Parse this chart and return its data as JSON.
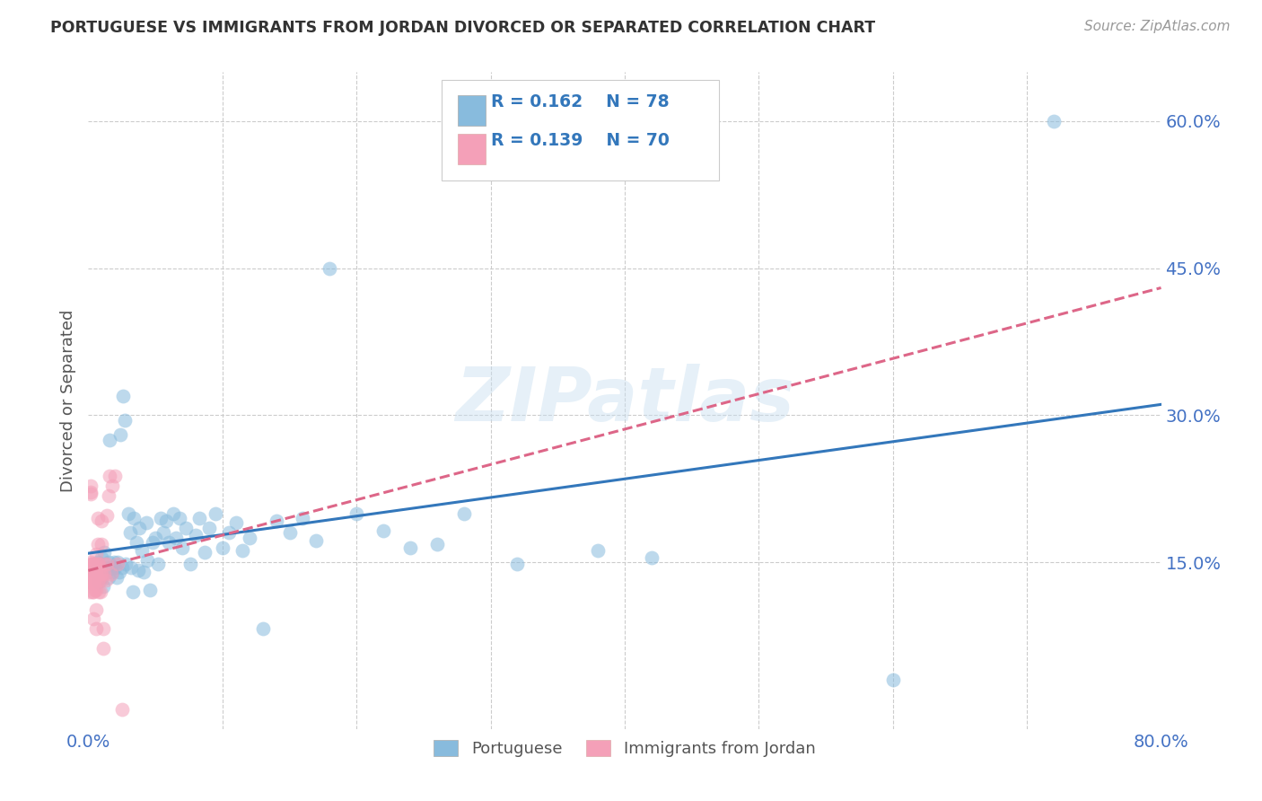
{
  "title": "PORTUGUESE VS IMMIGRANTS FROM JORDAN DIVORCED OR SEPARATED CORRELATION CHART",
  "source": "Source: ZipAtlas.com",
  "ylabel": "Divorced or Separated",
  "ytick_labels": [
    "15.0%",
    "30.0%",
    "45.0%",
    "60.0%"
  ],
  "ytick_values": [
    0.15,
    0.3,
    0.45,
    0.6
  ],
  "xlim": [
    0.0,
    0.8
  ],
  "ylim": [
    -0.02,
    0.65
  ],
  "watermark": "ZIPatlas",
  "blue_color": "#88bbdd",
  "pink_color": "#f4a0b8",
  "blue_line_color": "#3377bb",
  "pink_line_color": "#dd6688",
  "legend_label_blue": "Portuguese",
  "legend_label_pink": "Immigrants from Jordan",
  "blue_scatter_x": [
    0.005,
    0.007,
    0.008,
    0.009,
    0.01,
    0.01,
    0.01,
    0.011,
    0.012,
    0.013,
    0.014,
    0.015,
    0.015,
    0.016,
    0.017,
    0.018,
    0.019,
    0.02,
    0.021,
    0.022,
    0.023,
    0.024,
    0.025,
    0.026,
    0.027,
    0.028,
    0.03,
    0.031,
    0.032,
    0.033,
    0.034,
    0.036,
    0.037,
    0.038,
    0.04,
    0.041,
    0.043,
    0.044,
    0.046,
    0.048,
    0.05,
    0.052,
    0.054,
    0.056,
    0.058,
    0.06,
    0.063,
    0.065,
    0.068,
    0.07,
    0.073,
    0.076,
    0.08,
    0.083,
    0.087,
    0.09,
    0.095,
    0.1,
    0.105,
    0.11,
    0.115,
    0.12,
    0.13,
    0.14,
    0.15,
    0.16,
    0.17,
    0.18,
    0.2,
    0.22,
    0.24,
    0.26,
    0.28,
    0.32,
    0.38,
    0.42,
    0.6,
    0.72
  ],
  "blue_scatter_y": [
    0.14,
    0.15,
    0.13,
    0.145,
    0.135,
    0.155,
    0.14,
    0.125,
    0.16,
    0.14,
    0.145,
    0.135,
    0.15,
    0.275,
    0.145,
    0.14,
    0.15,
    0.145,
    0.135,
    0.15,
    0.14,
    0.28,
    0.145,
    0.32,
    0.295,
    0.148,
    0.2,
    0.18,
    0.145,
    0.12,
    0.195,
    0.17,
    0.142,
    0.185,
    0.162,
    0.14,
    0.19,
    0.152,
    0.122,
    0.17,
    0.175,
    0.148,
    0.195,
    0.18,
    0.192,
    0.17,
    0.2,
    0.175,
    0.195,
    0.165,
    0.185,
    0.148,
    0.178,
    0.195,
    0.16,
    0.185,
    0.2,
    0.165,
    0.18,
    0.19,
    0.162,
    0.175,
    0.082,
    0.192,
    0.18,
    0.195,
    0.172,
    0.45,
    0.2,
    0.182,
    0.165,
    0.168,
    0.2,
    0.148,
    0.162,
    0.155,
    0.03,
    0.6
  ],
  "pink_scatter_x": [
    0.0,
    0.001,
    0.001,
    0.001,
    0.001,
    0.002,
    0.002,
    0.002,
    0.002,
    0.002,
    0.002,
    0.002,
    0.003,
    0.003,
    0.003,
    0.003,
    0.003,
    0.003,
    0.003,
    0.003,
    0.003,
    0.004,
    0.004,
    0.004,
    0.004,
    0.004,
    0.004,
    0.004,
    0.004,
    0.004,
    0.005,
    0.005,
    0.005,
    0.005,
    0.005,
    0.005,
    0.006,
    0.006,
    0.006,
    0.006,
    0.006,
    0.007,
    0.007,
    0.007,
    0.007,
    0.007,
    0.008,
    0.008,
    0.008,
    0.008,
    0.009,
    0.009,
    0.01,
    0.01,
    0.01,
    0.01,
    0.011,
    0.011,
    0.012,
    0.012,
    0.013,
    0.014,
    0.014,
    0.015,
    0.016,
    0.017,
    0.018,
    0.02,
    0.022,
    0.025
  ],
  "pink_scatter_y": [
    0.14,
    0.148,
    0.13,
    0.142,
    0.12,
    0.138,
    0.142,
    0.15,
    0.135,
    0.22,
    0.222,
    0.228,
    0.14,
    0.148,
    0.13,
    0.138,
    0.12,
    0.142,
    0.142,
    0.148,
    0.138,
    0.13,
    0.148,
    0.12,
    0.132,
    0.142,
    0.128,
    0.135,
    0.092,
    0.138,
    0.14,
    0.148,
    0.132,
    0.138,
    0.122,
    0.142,
    0.102,
    0.14,
    0.082,
    0.122,
    0.158,
    0.168,
    0.142,
    0.195,
    0.132,
    0.148,
    0.12,
    0.142,
    0.148,
    0.132,
    0.138,
    0.12,
    0.132,
    0.168,
    0.138,
    0.192,
    0.082,
    0.062,
    0.148,
    0.138,
    0.132,
    0.198,
    0.148,
    0.218,
    0.238,
    0.138,
    0.228,
    0.238,
    0.148,
    0.0
  ]
}
